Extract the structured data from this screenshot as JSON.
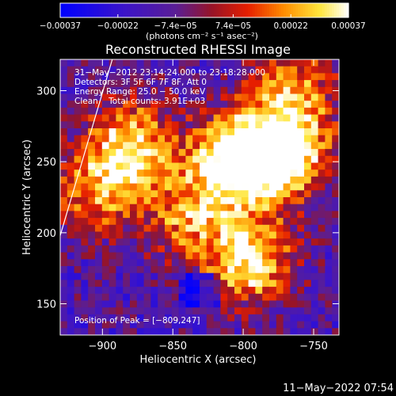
{
  "chart_data": {
    "type": "heatmap",
    "title": "Reconstructed RHESSI Image",
    "xlabel": "Heliocentric X (arcsec)",
    "ylabel": "Heliocentric Y (arcsec)",
    "xlim": [
      -930,
      -732
    ],
    "ylim": [
      128,
      322
    ],
    "x_ticks": [
      -900,
      -850,
      -800,
      -750
    ],
    "y_ticks": [
      150,
      200,
      250,
      300
    ],
    "x_tick_labels": [
      "−900",
      "−850",
      "−800",
      "−750"
    ],
    "y_tick_labels": [
      "150",
      "200",
      "250",
      "300"
    ],
    "colorbar": {
      "range": [
        -0.00037,
        0.00037
      ],
      "tick_labels": [
        "−0.00037",
        "−0.00022",
        "−7.4e−05",
        "7.4e−05",
        "0.00022",
        "0.00037"
      ],
      "unit_label": "(photons cm⁻² s⁻¹ asec⁻²)"
    },
    "annotations": [
      "31−May−2012 23:14:24.000 to 23:18:28.000",
      "Detectors: 3F 5F 6F 7F 8F, Att 0",
      "Energy Range: 25.0 − 50.0 keV",
      "Clean    Total counts: 3.91E+03"
    ],
    "peak_label": "Position of Peak = [−809,247]",
    "peak": [
      -809,
      247
    ],
    "grid_shape": [
      40,
      40
    ],
    "bright_sources": [
      {
        "x": -806,
        "y": 250,
        "strength": 1.0
      },
      {
        "x": -770,
        "y": 255,
        "strength": 0.85
      },
      {
        "x": -880,
        "y": 262,
        "strength": 0.7
      },
      {
        "x": -795,
        "y": 180,
        "strength": 0.75
      },
      {
        "x": -905,
        "y": 228,
        "strength": 0.5
      },
      {
        "x": -765,
        "y": 300,
        "strength": 0.55
      },
      {
        "x": -840,
        "y": 210,
        "strength": 0.5
      }
    ],
    "limb_line": {
      "x": [
        -930,
        -893
      ],
      "y": [
        198,
        322
      ]
    },
    "grid": false
  },
  "footer_timestamp": "11−May−2022 07:54"
}
